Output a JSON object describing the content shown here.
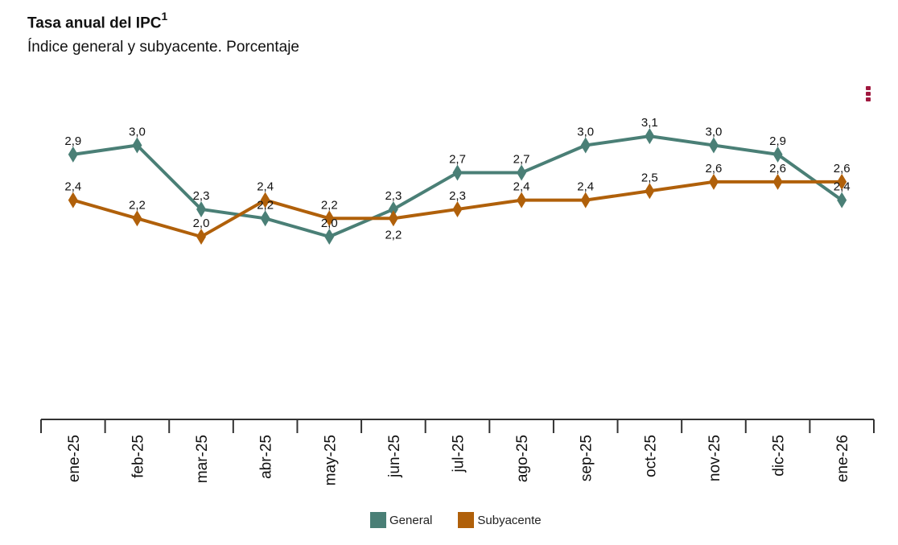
{
  "title": "Tasa anual del IPC",
  "title_sup": "1",
  "subtitle": "Índice general y subyacente. Porcentaje",
  "menu_icon": "kebab-menu-icon",
  "chart_data": {
    "type": "line",
    "categories": [
      "ene-25",
      "feb-25",
      "mar-25",
      "abr-25",
      "may-25",
      "jun-25",
      "jul-25",
      "ago-25",
      "sep-25",
      "oct-25",
      "nov-25",
      "dic-25",
      "ene-26"
    ],
    "series": [
      {
        "name": "General",
        "color": "#4a7f76",
        "values": [
          2.9,
          3.0,
          2.3,
          2.2,
          2.0,
          2.3,
          2.7,
          2.7,
          3.0,
          3.1,
          3.0,
          2.9,
          2.4
        ]
      },
      {
        "name": "Subyacente",
        "color": "#b0600a",
        "values": [
          2.4,
          2.2,
          2.0,
          2.4,
          2.2,
          2.2,
          2.3,
          2.4,
          2.4,
          2.5,
          2.6,
          2.6,
          2.6
        ]
      }
    ],
    "marker": "diamond",
    "data_labels": true,
    "decimal_separator": ",",
    "ylim": [
      0,
      3.5
    ],
    "y_axis_visible": false,
    "grid": false,
    "legend": "bottom"
  }
}
